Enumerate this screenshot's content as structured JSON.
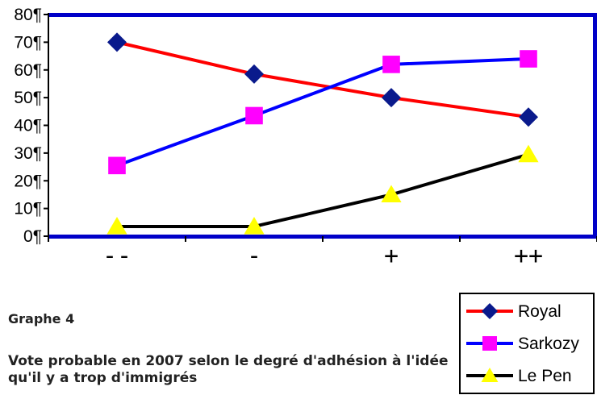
{
  "caption": {
    "label": "Graphe 4",
    "title": "Vote probable en 2007 selon le degré d'adhésion à l'idée qu'il y a trop d'immigrés"
  },
  "chart_data": {
    "type": "line",
    "categories": [
      "--",
      "-",
      "+",
      "++"
    ],
    "ylim": [
      0,
      80
    ],
    "yticks": [
      0,
      10,
      20,
      30,
      40,
      50,
      60,
      70,
      80
    ],
    "ytick_labels": [
      "0¶",
      "10¶",
      "20¶",
      "30¶",
      "40¶",
      "50¶",
      "60¶",
      "70¶",
      "80¶"
    ],
    "grid": false,
    "legend_position": "bottom-right",
    "series": [
      {
        "name": "Royal",
        "values": [
          70,
          58.5,
          50,
          43
        ],
        "line_color": "#ff0000",
        "marker": "diamond",
        "marker_color": "#0a1a8c"
      },
      {
        "name": "Sarkozy",
        "values": [
          25.5,
          43.5,
          62,
          64
        ],
        "line_color": "#0000ff",
        "marker": "square",
        "marker_color": "#ff00ff"
      },
      {
        "name": "Le Pen",
        "values": [
          3.5,
          3.5,
          15,
          29.5
        ],
        "line_color": "#000000",
        "marker": "triangle",
        "marker_color": "#ffff00"
      }
    ]
  }
}
